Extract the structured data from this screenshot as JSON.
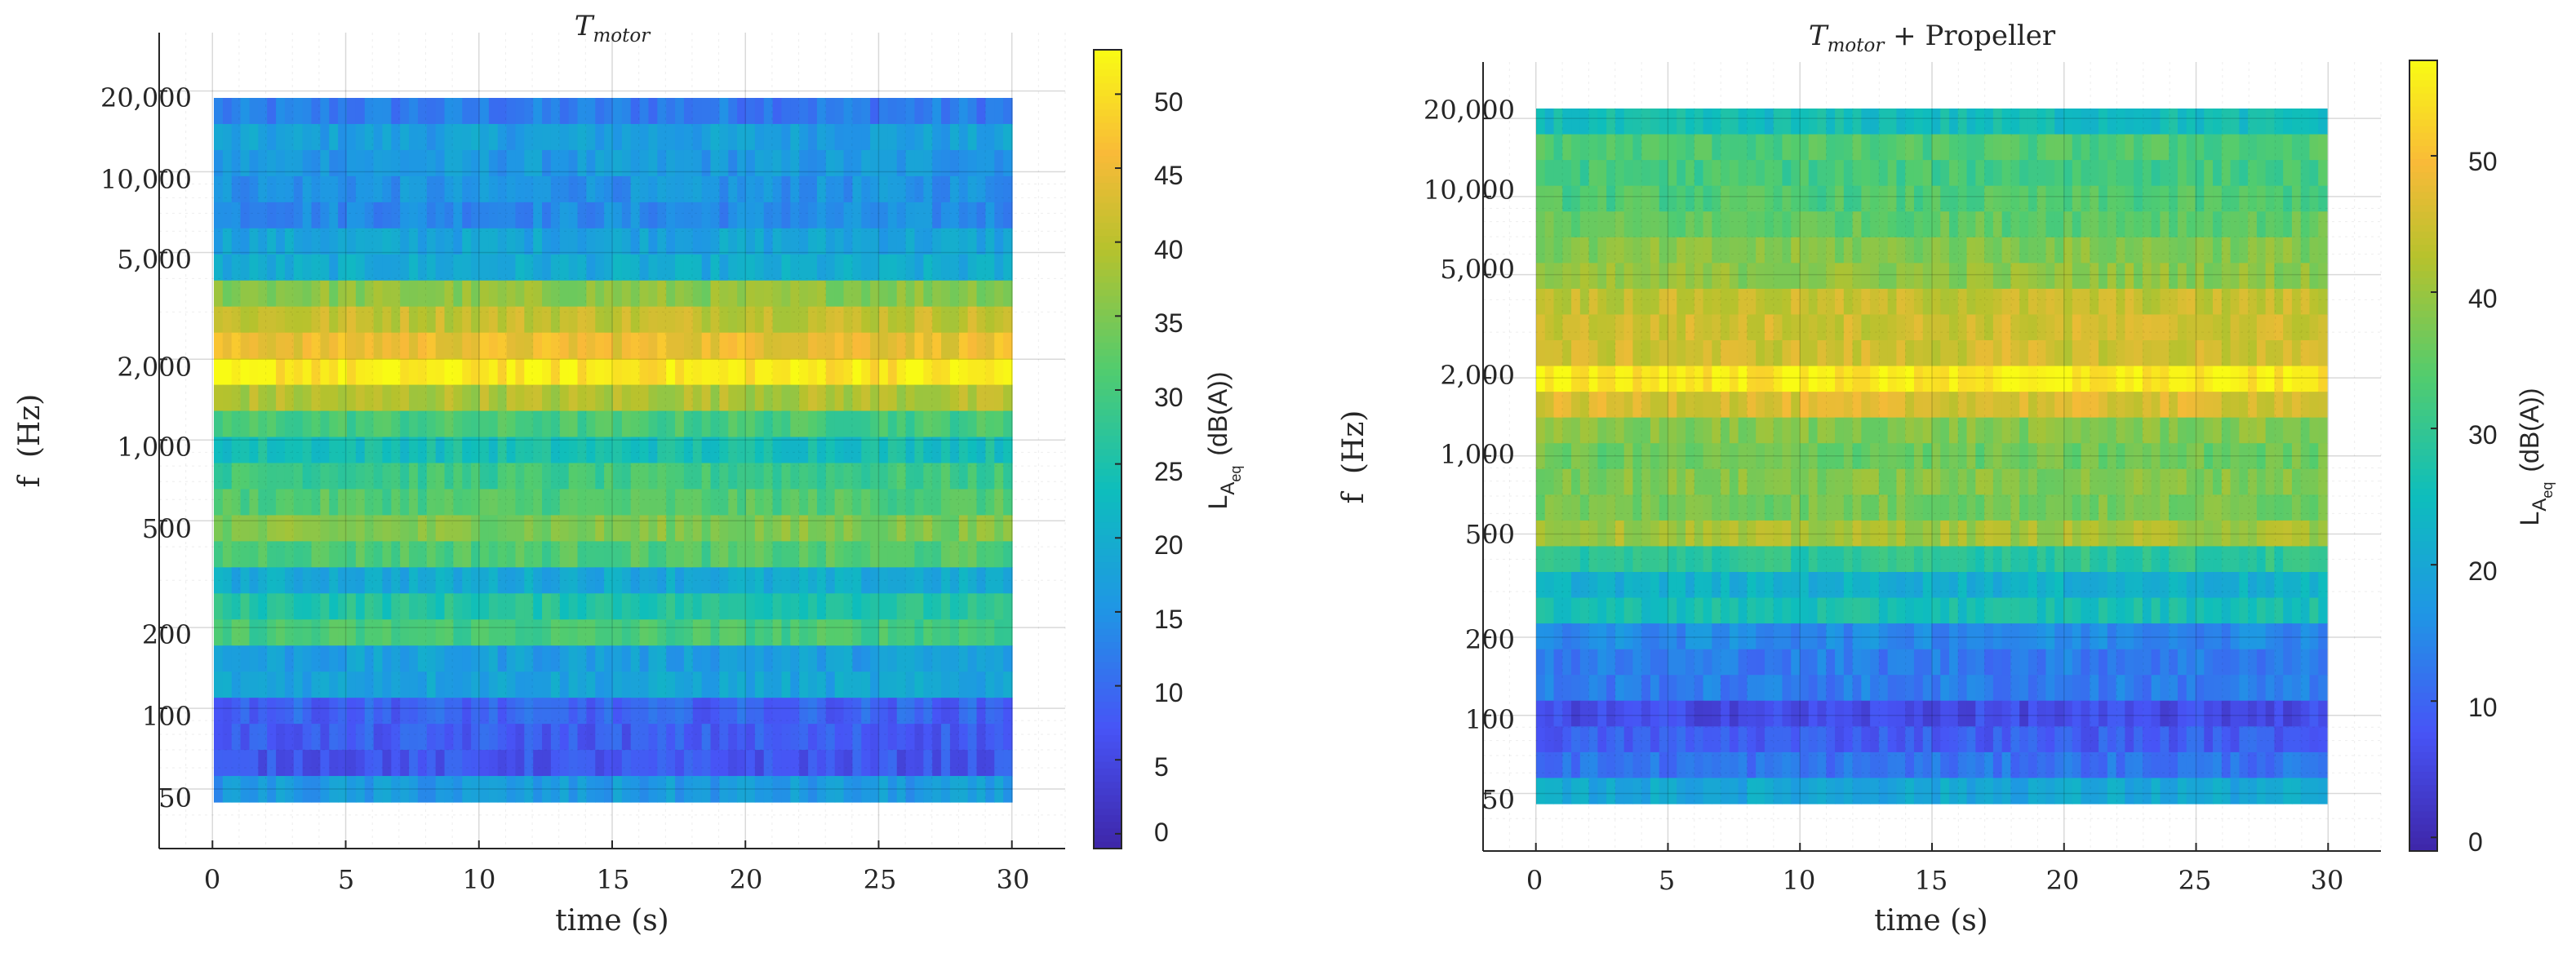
{
  "charts": [
    {
      "type": "heatmap",
      "title_main": "T",
      "title_sub": "motor",
      "title_suffix": "",
      "xlabel": "time (s)",
      "ylabel": "f  (Hz)",
      "x_ticks": [
        "0",
        "5",
        "10",
        "15",
        "20",
        "25",
        "30"
      ],
      "y_ticks": [
        "20,000",
        "10,000",
        "5,000",
        "2,000",
        "1,000",
        "500",
        "200",
        "100",
        "50"
      ],
      "cbar_label_main": "L",
      "cbar_label_sub1": "A",
      "cbar_label_sub2": "eq",
      "cbar_label_unit": "(dB(A))",
      "cbar_ticks": [
        "50",
        "45",
        "40",
        "35",
        "30",
        "25",
        "20",
        "15",
        "10",
        "5",
        "0"
      ]
    },
    {
      "type": "heatmap",
      "title_main": "T",
      "title_sub": "motor",
      "title_suffix": " + Propeller",
      "xlabel": "time (s)",
      "ylabel": "f  (Hz)",
      "x_ticks": [
        "0",
        "5",
        "10",
        "15",
        "20",
        "25",
        "30"
      ],
      "y_ticks": [
        "20,000",
        "10,000",
        "5,000",
        "2,000",
        "1,000",
        "500",
        "200",
        "100",
        "50"
      ],
      "cbar_label_main": "L",
      "cbar_label_sub1": "A",
      "cbar_label_sub2": "eq",
      "cbar_label_unit": "(dB(A))",
      "cbar_ticks": [
        "50",
        "40",
        "30",
        "20",
        "10",
        "0"
      ]
    }
  ],
  "chart_data": [
    {
      "type": "heatmap",
      "x_unit": "s",
      "y_unit": "Hz",
      "y_scale": "log",
      "xlim": [
        -2,
        32
      ],
      "x_range": [
        0,
        30
      ],
      "clim": [
        -1,
        53
      ],
      "colormap": "parula",
      "grid": true,
      "colorbar": "right",
      "bands": [
        {
          "f": 20000,
          "level": 12
        },
        {
          "f": 16000,
          "level": 17
        },
        {
          "f": 12500,
          "level": 16
        },
        {
          "f": 10000,
          "level": 15
        },
        {
          "f": 8000,
          "level": 14
        },
        {
          "f": 6300,
          "level": 18
        },
        {
          "f": 5000,
          "level": 19
        },
        {
          "f": 4000,
          "level": 36
        },
        {
          "f": 3150,
          "level": 41
        },
        {
          "f": 2500,
          "level": 45
        },
        {
          "f": 2000,
          "level": 51
        },
        {
          "f": 1600,
          "level": 39
        },
        {
          "f": 1250,
          "level": 30
        },
        {
          "f": 1000,
          "level": 24
        },
        {
          "f": 800,
          "level": 29
        },
        {
          "f": 630,
          "level": 31
        },
        {
          "f": 500,
          "level": 35
        },
        {
          "f": 400,
          "level": 31
        },
        {
          "f": 315,
          "level": 19
        },
        {
          "f": 250,
          "level": 26
        },
        {
          "f": 200,
          "level": 30
        },
        {
          "f": 160,
          "level": 17
        },
        {
          "f": 125,
          "level": 18
        },
        {
          "f": 100,
          "level": 9
        },
        {
          "f": 80,
          "level": 8
        },
        {
          "f": 63,
          "level": 7
        },
        {
          "f": 50,
          "level": 16
        }
      ]
    },
    {
      "type": "heatmap",
      "x_unit": "s",
      "y_unit": "Hz",
      "y_scale": "log",
      "xlim": [
        -2,
        32
      ],
      "x_range": [
        0,
        30
      ],
      "clim": [
        -1,
        57
      ],
      "colormap": "parula",
      "grid": true,
      "colorbar": "right",
      "bands": [
        {
          "f": 20000,
          "level": 25
        },
        {
          "f": 16000,
          "level": 33
        },
        {
          "f": 12500,
          "level": 32
        },
        {
          "f": 10000,
          "level": 33
        },
        {
          "f": 8000,
          "level": 35
        },
        {
          "f": 6300,
          "level": 38
        },
        {
          "f": 5000,
          "level": 39
        },
        {
          "f": 4000,
          "level": 44
        },
        {
          "f": 3150,
          "level": 45
        },
        {
          "f": 2500,
          "level": 45
        },
        {
          "f": 2000,
          "level": 55
        },
        {
          "f": 1600,
          "level": 46
        },
        {
          "f": 1250,
          "level": 38
        },
        {
          "f": 1000,
          "level": 36
        },
        {
          "f": 800,
          "level": 38
        },
        {
          "f": 630,
          "level": 37
        },
        {
          "f": 500,
          "level": 41
        },
        {
          "f": 400,
          "level": 29
        },
        {
          "f": 315,
          "level": 22
        },
        {
          "f": 250,
          "level": 26
        },
        {
          "f": 200,
          "level": 15
        },
        {
          "f": 160,
          "level": 13
        },
        {
          "f": 125,
          "level": 13
        },
        {
          "f": 100,
          "level": 6
        },
        {
          "f": 80,
          "level": 9
        },
        {
          "f": 63,
          "level": 12
        },
        {
          "f": 50,
          "level": 20
        }
      ]
    }
  ]
}
